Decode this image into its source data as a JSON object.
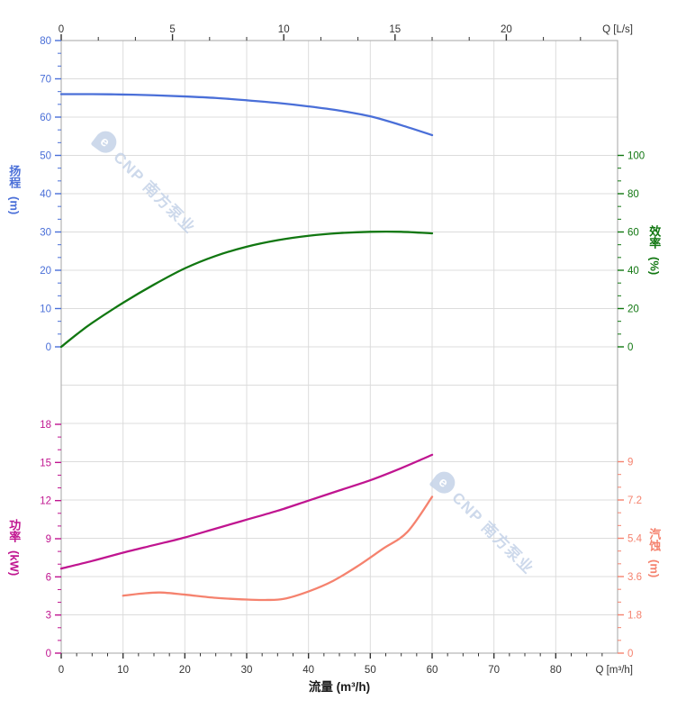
{
  "watermark": {
    "logo_letter": "e",
    "text": "CNP 南方泵业",
    "color": "#c5d3e8"
  },
  "chart_data": {
    "type": "line",
    "title": "",
    "legend": "none",
    "grid": "on",
    "x_bottom": {
      "axis_label": "Q [m³/h]",
      "title": "流量 (m³/h)",
      "ticks": [
        "0",
        "10",
        "20",
        "30",
        "40",
        "50",
        "60",
        "70",
        "80"
      ],
      "tick_values": [
        0,
        10,
        20,
        30,
        40,
        50,
        60,
        70,
        80
      ],
      "range": [
        0,
        90
      ],
      "major_step": 10,
      "minor_step": 2.5,
      "color": "#333333"
    },
    "x_top": {
      "axis_label": "Q [L/s]",
      "ticks": [
        "0",
        "5",
        "10",
        "15",
        "20"
      ],
      "tick_values": [
        0,
        5,
        10,
        15,
        20
      ],
      "range": [
        0,
        25
      ],
      "major_step": 5,
      "minor_step": 1.66667,
      "color": "#333333"
    },
    "y_left_top": {
      "name": "扬程",
      "unit": "(m)",
      "color": "#4a6fd8",
      "ticks": [
        "0",
        "10",
        "20",
        "30",
        "40",
        "50",
        "60",
        "70",
        "80"
      ],
      "tick_values": [
        0,
        10,
        20,
        30,
        40,
        50,
        60,
        70,
        80
      ],
      "range": [
        0,
        80
      ],
      "major_step": 10,
      "minor_step": 3.33333
    },
    "y_right_top": {
      "name": "效率",
      "unit": "(%)",
      "color": "#117711",
      "ticks": [
        "0",
        "20",
        "40",
        "60",
        "80",
        "100"
      ],
      "tick_values": [
        0,
        20,
        40,
        60,
        80,
        100
      ],
      "range": [
        0,
        100
      ],
      "major_step": 20,
      "minor_step": 6.66667
    },
    "y_left_bottom": {
      "name": "功率",
      "unit": "(kW)",
      "color": "#c01590",
      "ticks": [
        "0",
        "3",
        "6",
        "9",
        "12",
        "15",
        "18"
      ],
      "tick_values": [
        0,
        3,
        6,
        9,
        12,
        15,
        18
      ],
      "range": [
        0,
        18
      ],
      "major_step": 3,
      "minor_step": 1
    },
    "y_right_bottom": {
      "name": "汽蚀",
      "unit": "(m)",
      "color": "#f5826e",
      "ticks": [
        "0",
        "1.8",
        "3.6",
        "5.4",
        "7.2",
        "9"
      ],
      "tick_values": [
        0,
        1.8,
        3.6,
        5.4,
        7.2,
        9
      ],
      "range": [
        0,
        9
      ],
      "major_step": 1.8,
      "minor_step": 0.6
    },
    "series": [
      {
        "name": "head",
        "label": "扬程",
        "axis": "y_left_top",
        "color": "#4a6fd8",
        "points": [
          [
            0,
            66
          ],
          [
            5,
            66
          ],
          [
            10,
            65.9
          ],
          [
            15,
            65.7
          ],
          [
            20,
            65.4
          ],
          [
            25,
            65.0
          ],
          [
            30,
            64.4
          ],
          [
            35,
            63.7
          ],
          [
            40,
            62.8
          ],
          [
            45,
            61.7
          ],
          [
            50,
            60.2
          ],
          [
            55,
            57.9
          ],
          [
            60,
            55.3
          ]
        ]
      },
      {
        "name": "efficiency",
        "label": "效率",
        "axis": "y_right_top",
        "color": "#117711",
        "points": [
          [
            0,
            0
          ],
          [
            2.5,
            6.5
          ],
          [
            5,
            12.5
          ],
          [
            10,
            23
          ],
          [
            15,
            32.5
          ],
          [
            20,
            41
          ],
          [
            25,
            47.5
          ],
          [
            30,
            52.3
          ],
          [
            35,
            55.7
          ],
          [
            40,
            58
          ],
          [
            45,
            59.4
          ],
          [
            50,
            60.1
          ],
          [
            55,
            60.1
          ],
          [
            60,
            59.3
          ]
        ]
      },
      {
        "name": "power",
        "label": "功率",
        "axis": "y_left_bottom",
        "color": "#c01590",
        "points": [
          [
            0,
            6.65
          ],
          [
            5,
            7.25
          ],
          [
            10,
            7.9
          ],
          [
            15,
            8.5
          ],
          [
            20,
            9.1
          ],
          [
            25,
            9.8
          ],
          [
            30,
            10.5
          ],
          [
            35,
            11.2
          ],
          [
            40,
            12.0
          ],
          [
            45,
            12.8
          ],
          [
            50,
            13.6
          ],
          [
            55,
            14.55
          ],
          [
            60,
            15.6
          ]
        ]
      },
      {
        "name": "npsh",
        "label": "汽蚀",
        "axis": "y_right_bottom",
        "color": "#f5826e",
        "points": [
          [
            10,
            2.7
          ],
          [
            13,
            2.8
          ],
          [
            16,
            2.85
          ],
          [
            20,
            2.75
          ],
          [
            25,
            2.6
          ],
          [
            30,
            2.52
          ],
          [
            33,
            2.5
          ],
          [
            36,
            2.55
          ],
          [
            40,
            2.9
          ],
          [
            44,
            3.4
          ],
          [
            48,
            4.1
          ],
          [
            52,
            4.9
          ],
          [
            56,
            5.7
          ],
          [
            60,
            7.35
          ]
        ]
      }
    ]
  }
}
